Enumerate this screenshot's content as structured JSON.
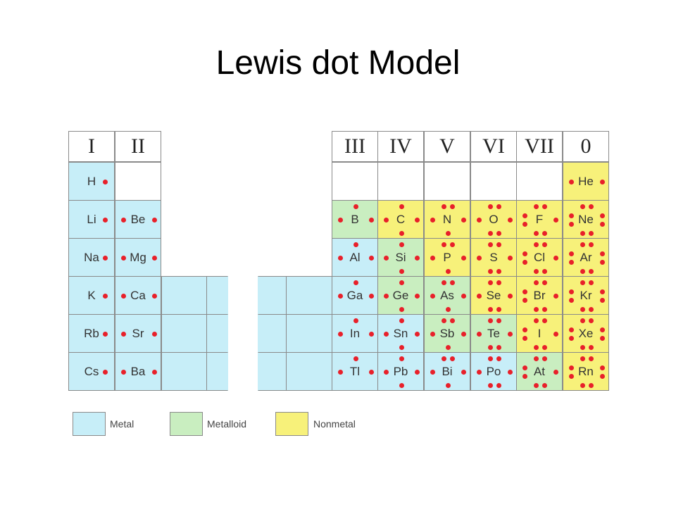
{
  "title": "Lewis dot Model",
  "colors": {
    "metal": "#c7eef8",
    "metalloid": "#c9eec0",
    "nonmetal": "#f7f17a",
    "empty": "#ffffff",
    "dot": "#e8202a"
  },
  "left_headers": [
    "I",
    "II"
  ],
  "right_headers": [
    "III",
    "IV",
    "V",
    "VI",
    "VII",
    "0"
  ],
  "left_block": [
    [
      {
        "symbol": "H",
        "type": "metal",
        "electrons": 1
      },
      {
        "symbol": "",
        "type": "empty",
        "electrons": 0
      }
    ],
    [
      {
        "symbol": "Li",
        "type": "metal",
        "electrons": 1
      },
      {
        "symbol": "Be",
        "type": "metal",
        "electrons": 2
      }
    ],
    [
      {
        "symbol": "Na",
        "type": "metal",
        "electrons": 1
      },
      {
        "symbol": "Mg",
        "type": "metal",
        "electrons": 2
      }
    ],
    [
      {
        "symbol": "K",
        "type": "metal",
        "electrons": 1
      },
      {
        "symbol": "Ca",
        "type": "metal",
        "electrons": 2
      }
    ],
    [
      {
        "symbol": "Rb",
        "type": "metal",
        "electrons": 1
      },
      {
        "symbol": "Sr",
        "type": "metal",
        "electrons": 2
      }
    ],
    [
      {
        "symbol": "Cs",
        "type": "metal",
        "electrons": 1
      },
      {
        "symbol": "Ba",
        "type": "metal",
        "electrons": 2
      }
    ]
  ],
  "right_block": [
    [
      {
        "symbol": "",
        "type": "empty",
        "electrons": 0
      },
      {
        "symbol": "",
        "type": "empty",
        "electrons": 0
      },
      {
        "symbol": "",
        "type": "empty",
        "electrons": 0
      },
      {
        "symbol": "",
        "type": "empty",
        "electrons": 0
      },
      {
        "symbol": "",
        "type": "empty",
        "electrons": 0
      },
      {
        "symbol": "He",
        "type": "nonmetal",
        "electrons": 2
      }
    ],
    [
      {
        "symbol": "B",
        "type": "metalloid",
        "electrons": 3
      },
      {
        "symbol": "C",
        "type": "nonmetal",
        "electrons": 4
      },
      {
        "symbol": "N",
        "type": "nonmetal",
        "electrons": 5
      },
      {
        "symbol": "O",
        "type": "nonmetal",
        "electrons": 6
      },
      {
        "symbol": "F",
        "type": "nonmetal",
        "electrons": 7
      },
      {
        "symbol": "Ne",
        "type": "nonmetal",
        "electrons": 8
      }
    ],
    [
      {
        "symbol": "Al",
        "type": "metal",
        "electrons": 3
      },
      {
        "symbol": "Si",
        "type": "metalloid",
        "electrons": 4
      },
      {
        "symbol": "P",
        "type": "nonmetal",
        "electrons": 5
      },
      {
        "symbol": "S",
        "type": "nonmetal",
        "electrons": 6
      },
      {
        "symbol": "Cl",
        "type": "nonmetal",
        "electrons": 7
      },
      {
        "symbol": "Ar",
        "type": "nonmetal",
        "electrons": 8
      }
    ],
    [
      {
        "symbol": "Ga",
        "type": "metal",
        "electrons": 3
      },
      {
        "symbol": "Ge",
        "type": "metalloid",
        "electrons": 4
      },
      {
        "symbol": "As",
        "type": "metalloid",
        "electrons": 5
      },
      {
        "symbol": "Se",
        "type": "nonmetal",
        "electrons": 6
      },
      {
        "symbol": "Br",
        "type": "nonmetal",
        "electrons": 7
      },
      {
        "symbol": "Kr",
        "type": "nonmetal",
        "electrons": 8
      }
    ],
    [
      {
        "symbol": "In",
        "type": "metal",
        "electrons": 3
      },
      {
        "symbol": "Sn",
        "type": "metal",
        "electrons": 4
      },
      {
        "symbol": "Sb",
        "type": "metalloid",
        "electrons": 5
      },
      {
        "symbol": "Te",
        "type": "metalloid",
        "electrons": 6
      },
      {
        "symbol": "I",
        "type": "nonmetal",
        "electrons": 7
      },
      {
        "symbol": "Xe",
        "type": "nonmetal",
        "electrons": 8
      }
    ],
    [
      {
        "symbol": "Tl",
        "type": "metal",
        "electrons": 3
      },
      {
        "symbol": "Pb",
        "type": "metal",
        "electrons": 4
      },
      {
        "symbol": "Bi",
        "type": "metal",
        "electrons": 5
      },
      {
        "symbol": "Po",
        "type": "metal",
        "electrons": 6
      },
      {
        "symbol": "At",
        "type": "metalloid",
        "electrons": 7
      },
      {
        "symbol": "Rn",
        "type": "nonmetal",
        "electrons": 8
      }
    ]
  ],
  "legend": [
    {
      "label": "Metal",
      "type": "metal"
    },
    {
      "label": "Metalloid",
      "type": "metalloid"
    },
    {
      "label": "Nonmetal",
      "type": "nonmetal"
    }
  ]
}
